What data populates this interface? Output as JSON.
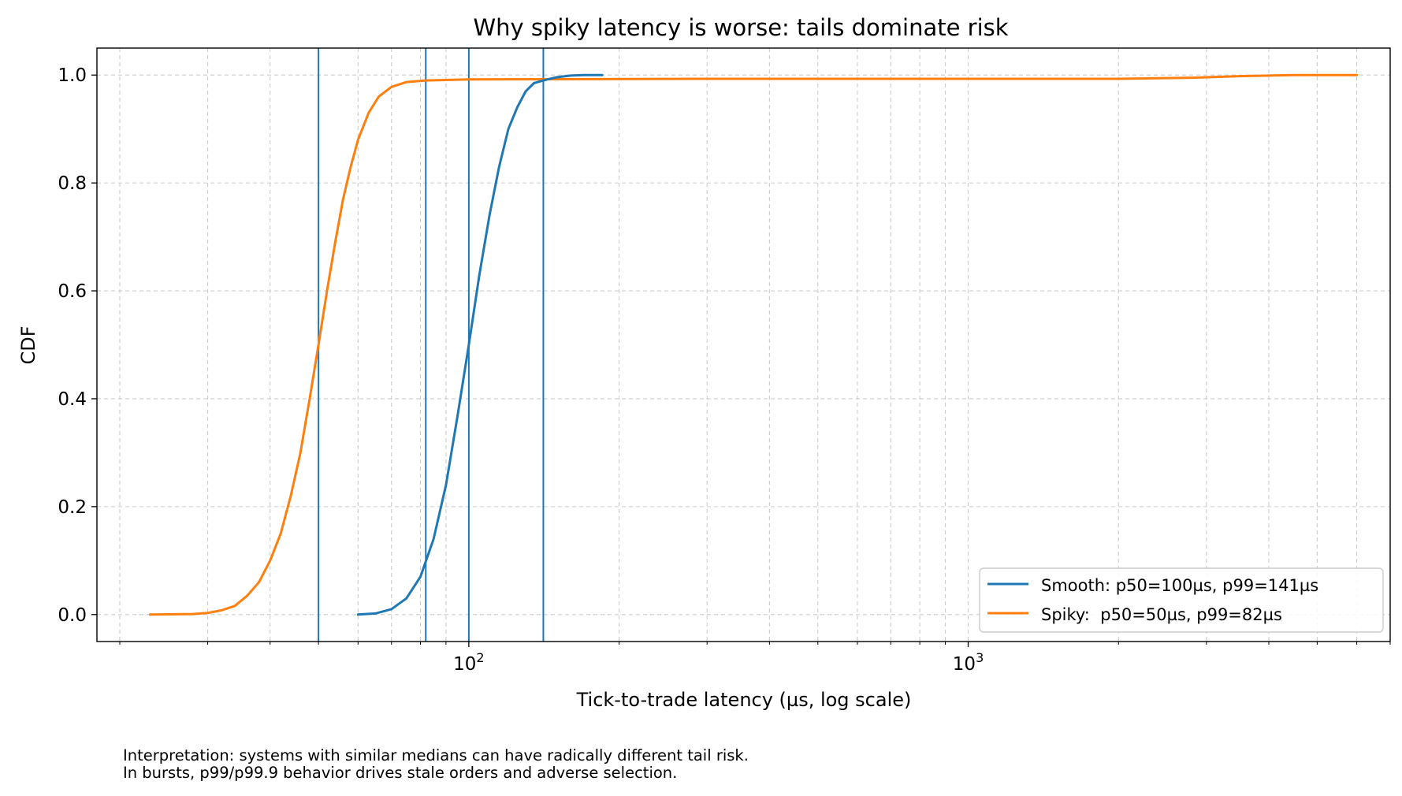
{
  "chart_data": {
    "type": "line",
    "title": "Why spiky latency is worse: tails dominate risk",
    "xlabel": "Tick-to-trade latency (µs, log scale)",
    "ylabel": "CDF",
    "xscale": "log",
    "xlim": [
      18,
      7000
    ],
    "ylim": [
      -0.05,
      1.05
    ],
    "x_major_ticks": [
      {
        "value": 100,
        "base": "10",
        "exp": "2"
      },
      {
        "value": 1000,
        "base": "10",
        "exp": "3"
      }
    ],
    "y_ticks": [
      0.0,
      0.2,
      0.4,
      0.6,
      0.8,
      1.0
    ],
    "y_tick_labels": [
      "0.0",
      "0.2",
      "0.4",
      "0.6",
      "0.8",
      "1.0"
    ],
    "grid": true,
    "legend_position": "lower-right",
    "series": [
      {
        "name": "Smooth: p50=100µs, p99=141µs",
        "color": "#1f77b4",
        "x": [
          60,
          65,
          70,
          75,
          80,
          85,
          90,
          95,
          100,
          105,
          110,
          115,
          120,
          125,
          130,
          135,
          141,
          150,
          160,
          170,
          185
        ],
        "y": [
          0.0,
          0.002,
          0.01,
          0.03,
          0.07,
          0.14,
          0.24,
          0.37,
          0.5,
          0.63,
          0.74,
          0.83,
          0.9,
          0.94,
          0.97,
          0.985,
          0.99,
          0.996,
          0.999,
          1.0,
          1.0
        ]
      },
      {
        "name": "Spiky:  p50=50µs, p99=82µs",
        "color": "#ff7f0e",
        "x": [
          23,
          28,
          30,
          32,
          34,
          36,
          38,
          40,
          42,
          44,
          46,
          48,
          50,
          52,
          54,
          56,
          58,
          60,
          63,
          66,
          70,
          75,
          82,
          100,
          300,
          1000,
          2000,
          2800,
          3500,
          4500,
          6000
        ],
        "y": [
          0.0,
          0.001,
          0.003,
          0.008,
          0.016,
          0.035,
          0.06,
          0.1,
          0.15,
          0.22,
          0.3,
          0.4,
          0.5,
          0.6,
          0.69,
          0.77,
          0.83,
          0.88,
          0.93,
          0.96,
          0.978,
          0.987,
          0.99,
          0.992,
          0.993,
          0.993,
          0.993,
          0.995,
          0.998,
          1.0,
          1.0
        ]
      }
    ],
    "vertical_lines": {
      "color": "#1f77b4",
      "x": [
        50,
        82,
        100,
        141
      ]
    }
  },
  "notes": {
    "line1": "Interpretation: systems with similar medians can have radically different tail risk.",
    "line2": "In bursts, p99/p99.9 behavior drives stale orders and adverse selection."
  }
}
